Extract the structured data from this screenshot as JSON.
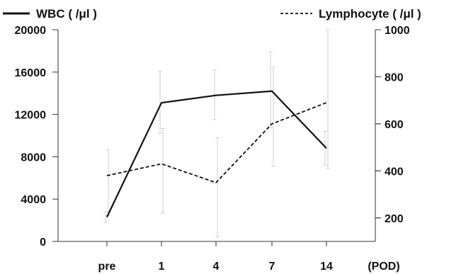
{
  "chart_data": {
    "type": "line",
    "categories": [
      "pre",
      "1",
      "4",
      "7",
      "14"
    ],
    "x_unit_label": "(POD)",
    "left_axis": {
      "ylim": [
        0,
        20000
      ],
      "ticks": [
        0,
        4000,
        8000,
        12000,
        16000,
        20000
      ],
      "tick_labels": [
        "0",
        "4000",
        "8000",
        "12000",
        "16000",
        "20000"
      ]
    },
    "right_axis": {
      "ylim": [
        100,
        1000
      ],
      "ticks": [
        200,
        400,
        600,
        800,
        1000
      ],
      "tick_labels": [
        "200",
        "400",
        "600",
        "800",
        "1000"
      ]
    },
    "series": [
      {
        "name": "WBC ( /μl )",
        "axis": "left",
        "style": "solid",
        "values": [
          2300,
          13100,
          13800,
          14200,
          8800
        ],
        "error_low": [
          1800,
          10200,
          11500,
          10800,
          7200
        ],
        "error_high": [
          2800,
          16100,
          16200,
          17900,
          10400
        ]
      },
      {
        "name": "Lymphocyte ( /μl )",
        "axis": "right",
        "style": "dashed",
        "values": [
          380,
          430,
          350,
          600,
          690
        ],
        "error_low": [
          210,
          220,
          120,
          420,
          410
        ],
        "error_high": [
          490,
          580,
          540,
          840,
          1000
        ]
      }
    ],
    "grid": false,
    "legend_position": "top"
  }
}
